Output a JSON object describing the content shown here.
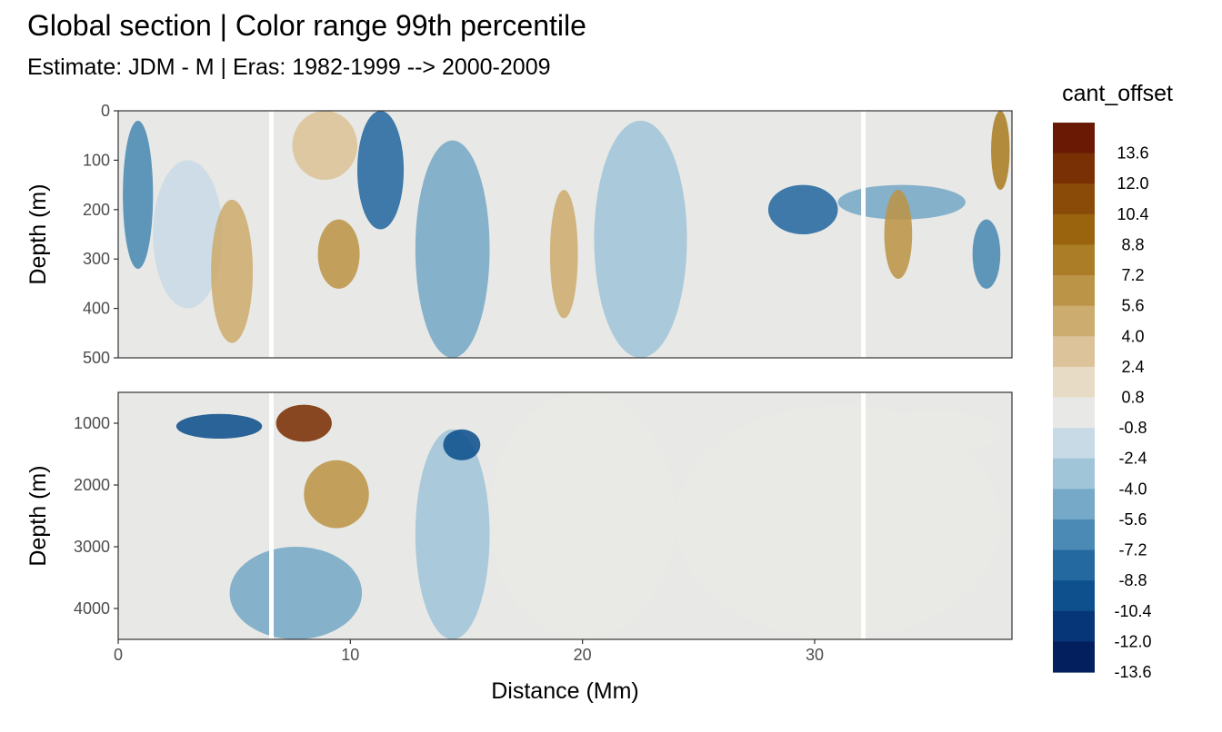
{
  "title": "Global section | Color range 99th percentile",
  "subtitle": "Estimate: JDM - M | Eras: 1982-1999 --> 2000-2009",
  "chart_data": {
    "type": "heatmap",
    "xlabel": "Distance (Mm)",
    "xlim": [
      0,
      38.5
    ],
    "xticks": [
      0,
      10,
      20,
      30
    ],
    "grid": true,
    "legend_position": "right",
    "panels": [
      {
        "ylabel": "Depth (m)",
        "ylim": [
          0,
          500
        ],
        "yticks": [
          0,
          100,
          200,
          300,
          400,
          500
        ]
      },
      {
        "ylabel": "Depth (m)",
        "ylim": [
          500,
          4500
        ],
        "yticks": [
          1000,
          2000,
          3000,
          4000
        ]
      }
    ],
    "gap_columns_mm": [
      6.6,
      32.1
    ],
    "legend": {
      "title": "cant_offset",
      "labels": [
        "13.6",
        "12.0",
        "10.4",
        "8.8",
        "7.2",
        "5.6",
        "4.0",
        "2.4",
        "0.8",
        "-0.8",
        "-2.4",
        "-4.0",
        "-5.6",
        "-7.2",
        "-8.8",
        "-10.4",
        "-12.0",
        "-13.6"
      ],
      "colors": [
        "#6a1a04",
        "#7a3005",
        "#8a4a08",
        "#9a640f",
        "#aa7d26",
        "#bc9448",
        "#cdac70",
        "#dcc399",
        "#e8dbc6",
        "#e8e9e6",
        "#c8dae6",
        "#a0c4d8",
        "#76a9c7",
        "#4a8ab4",
        "#2569a1",
        "#0e508d",
        "#073678",
        "#041f5e"
      ]
    },
    "features": [
      {
        "panel": 0,
        "x": [
          0.2,
          1.5
        ],
        "y": [
          20,
          320
        ],
        "value": -7.0
      },
      {
        "panel": 0,
        "x": [
          1.5,
          4.5
        ],
        "y": [
          100,
          400
        ],
        "value": -3.0
      },
      {
        "panel": 0,
        "x": [
          4.0,
          5.8
        ],
        "y": [
          180,
          470
        ],
        "value": 4.5
      },
      {
        "panel": 0,
        "x": [
          7.5,
          10.3
        ],
        "y": [
          0,
          140
        ],
        "value": 1.8
      },
      {
        "panel": 0,
        "x": [
          8.6,
          10.4
        ],
        "y": [
          220,
          360
        ],
        "value": 5.0
      },
      {
        "panel": 0,
        "x": [
          10.3,
          12.3
        ],
        "y": [
          0,
          240
        ],
        "value": -9.0
      },
      {
        "panel": 0,
        "x": [
          12.8,
          16.0
        ],
        "y": [
          60,
          500
        ],
        "value": -5.5
      },
      {
        "panel": 0,
        "x": [
          18.6,
          19.8
        ],
        "y": [
          160,
          420
        ],
        "value": 4.5
      },
      {
        "panel": 0,
        "x": [
          20.5,
          24.5
        ],
        "y": [
          20,
          500
        ],
        "value": -4.0
      },
      {
        "panel": 0,
        "x": [
          28.0,
          31.0
        ],
        "y": [
          150,
          250
        ],
        "value": -8.0
      },
      {
        "panel": 0,
        "x": [
          31.0,
          36.5
        ],
        "y": [
          150,
          220
        ],
        "value": -6.0
      },
      {
        "panel": 0,
        "x": [
          33.0,
          34.2
        ],
        "y": [
          160,
          340
        ],
        "value": 5.5
      },
      {
        "panel": 0,
        "x": [
          37.6,
          38.4
        ],
        "y": [
          0,
          160
        ],
        "value": 7.0
      },
      {
        "panel": 0,
        "x": [
          36.8,
          38.0
        ],
        "y": [
          220,
          360
        ],
        "value": -7.5
      },
      {
        "panel": 1,
        "x": [
          2.5,
          6.2
        ],
        "y": [
          850,
          1250
        ],
        "value": -10.5
      },
      {
        "panel": 1,
        "x": [
          6.8,
          9.2
        ],
        "y": [
          700,
          1300
        ],
        "value": 12.5
      },
      {
        "panel": 1,
        "x": [
          8.0,
          10.8
        ],
        "y": [
          1600,
          2700
        ],
        "value": 5.0
      },
      {
        "panel": 1,
        "x": [
          12.8,
          16.0
        ],
        "y": [
          1100,
          4500
        ],
        "value": -4.5
      },
      {
        "panel": 1,
        "x": [
          14.0,
          15.6
        ],
        "y": [
          1100,
          1600
        ],
        "value": -10.0
      },
      {
        "panel": 1,
        "x": [
          4.8,
          10.5
        ],
        "y": [
          3000,
          4500
        ],
        "value": -5.0
      },
      {
        "panel": 1,
        "x": [
          16.0,
          24.0
        ],
        "y": [
          500,
          4500
        ],
        "value": -0.5
      },
      {
        "panel": 1,
        "x": [
          24.0,
          38.0
        ],
        "y": [
          700,
          4500
        ],
        "value": 0.0
      },
      {
        "panel": 1,
        "x": [
          32.2,
          38.0
        ],
        "y": [
          800,
          1500
        ],
        "value": -1.5
      }
    ]
  }
}
